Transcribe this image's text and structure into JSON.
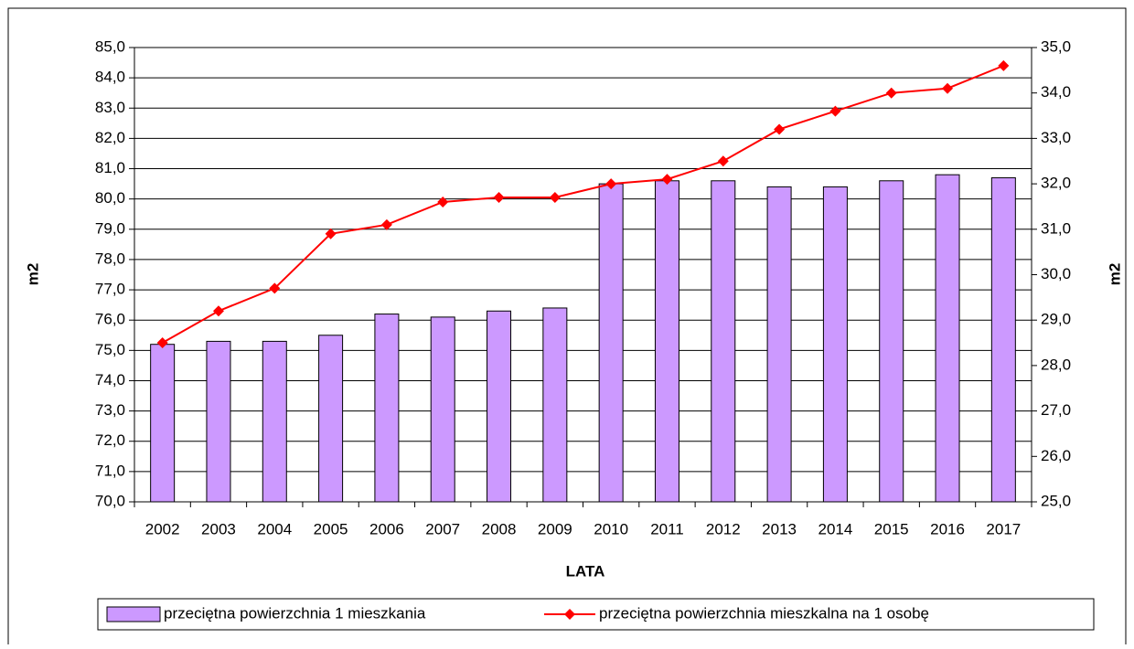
{
  "chart_data": {
    "type": "bar",
    "x_label": "LATA",
    "y_label": "m2",
    "y2_label": "m2",
    "categories": [
      "2002",
      "2003",
      "2004",
      "2005",
      "2006",
      "2007",
      "2008",
      "2009",
      "2010",
      "2011",
      "2012",
      "2013",
      "2014",
      "2015",
      "2016",
      "2017"
    ],
    "series": [
      {
        "name": "przeciętna powierzchnia 1 mieszkania",
        "type": "bar",
        "color": "#cc99ff",
        "values": [
          75.2,
          75.3,
          75.3,
          75.5,
          76.2,
          76.1,
          76.3,
          76.4,
          80.5,
          80.6,
          80.6,
          80.4,
          80.4,
          80.6,
          80.8,
          80.7
        ]
      },
      {
        "name": "przeciętna powierzchnia mieszkalna na 1 osobę",
        "type": "line",
        "axis": "y2",
        "color": "#ff0000",
        "values": [
          28.5,
          29.2,
          29.7,
          30.9,
          31.1,
          31.6,
          31.7,
          31.7,
          32.0,
          32.1,
          32.5,
          33.2,
          33.6,
          34.0,
          34.1,
          34.6
        ]
      }
    ],
    "ylim": [
      70,
      85
    ],
    "yticks": [
      {
        "value": 70,
        "label": "70,0"
      },
      {
        "value": 71,
        "label": "71,0"
      },
      {
        "value": 72,
        "label": "72,0"
      },
      {
        "value": 73,
        "label": "73,0"
      },
      {
        "value": 74,
        "label": "74,0"
      },
      {
        "value": 75,
        "label": "75,0"
      },
      {
        "value": 76,
        "label": "76,0"
      },
      {
        "value": 77,
        "label": "77,0"
      },
      {
        "value": 78,
        "label": "78,0"
      },
      {
        "value": 79,
        "label": "79,0"
      },
      {
        "value": 80,
        "label": "80,0"
      },
      {
        "value": 81,
        "label": "81,0"
      },
      {
        "value": 82,
        "label": "82,0"
      },
      {
        "value": 83,
        "label": "83,0"
      },
      {
        "value": 84,
        "label": "84,0"
      },
      {
        "value": 85,
        "label": "85,0"
      }
    ],
    "y2lim": [
      25,
      35
    ],
    "y2ticks": [
      {
        "value": 25,
        "label": "25,0"
      },
      {
        "value": 26,
        "label": "26,0"
      },
      {
        "value": 27,
        "label": "27,0"
      },
      {
        "value": 28,
        "label": "28,0"
      },
      {
        "value": 29,
        "label": "29,0"
      },
      {
        "value": 30,
        "label": "30,0"
      },
      {
        "value": 31,
        "label": "31,0"
      },
      {
        "value": 32,
        "label": "32,0"
      },
      {
        "value": 33,
        "label": "33,0"
      },
      {
        "value": 34,
        "label": "34,0"
      },
      {
        "value": 35,
        "label": "35,0"
      }
    ],
    "grid": true,
    "legend": "bottom"
  }
}
